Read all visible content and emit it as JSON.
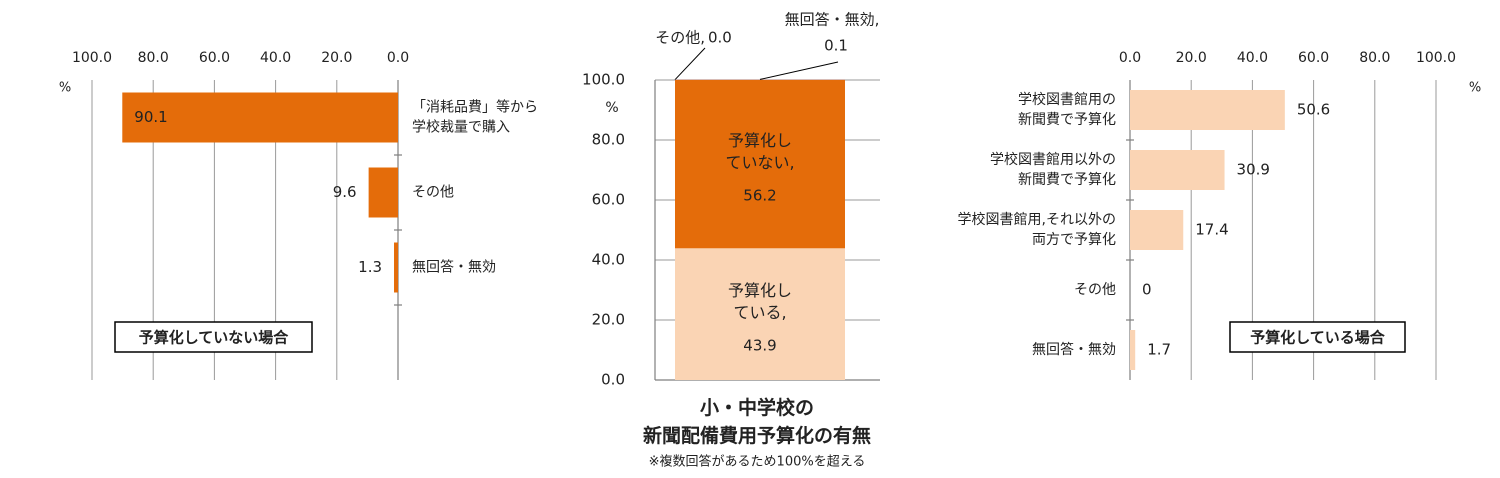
{
  "chart_data": [
    {
      "type": "hbar",
      "categories": [
        "「消耗品費」等から\n学校裁量で購入",
        "その他",
        "無回答・無効"
      ],
      "values": [
        90.1,
        9.6,
        1.3
      ],
      "color": "#E46C0A",
      "xlim": [
        100,
        0
      ],
      "xticks": [
        {
          "value": 100,
          "label": "100.0"
        },
        {
          "value": 80,
          "label": "80.0"
        },
        {
          "value": 60,
          "label": "60.0"
        },
        {
          "value": 40,
          "label": "40.0"
        },
        {
          "value": 20,
          "label": "20.0"
        },
        {
          "value": 0,
          "label": "0.0"
        }
      ],
      "grid": true,
      "axis_label": "%",
      "annotation": "予算化していない場合"
    },
    {
      "type": "stacked_bar",
      "categories": [
        null
      ],
      "series": [
        {
          "name": "予算化し\nている,",
          "color": "#FAD4B4",
          "values": [
            43.9
          ]
        },
        {
          "name": "予算化し\nていない,",
          "color": "#E46C0A",
          "values": [
            56.2
          ]
        },
        {
          "name": "その他,",
          "color": "#C0504D",
          "values": [
            0.0
          ],
          "value_labels": [
            "0.0"
          ]
        },
        {
          "name": "無回答・無効,",
          "color": "#B3A2C7",
          "values": [
            0.1
          ]
        }
      ],
      "ylim": [
        0,
        100
      ],
      "yticks": [
        {
          "value": 0,
          "label": "0.0"
        },
        {
          "value": 20,
          "label": "20.0"
        },
        {
          "value": 40,
          "label": "40.0"
        },
        {
          "value": 60,
          "label": "60.0"
        },
        {
          "value": 80,
          "label": "80.0"
        },
        {
          "value": 100,
          "label": "100.0"
        }
      ],
      "grid": true,
      "axis_label": "%",
      "title": "小・中学校の\n新聞配備費用予算化の有無",
      "note": "※複数回答があるため100%を超える"
    },
    {
      "type": "hbar",
      "categories": [
        "学校図書館用の\n新聞費で予算化",
        "学校図書館用以外の\n新聞費で予算化",
        "学校図書館用,それ以外の\n両方で予算化",
        "その他",
        "無回答・無効"
      ],
      "values": [
        50.6,
        30.9,
        17.4,
        0,
        1.7
      ],
      "color": "#FAD4B4",
      "xlim": [
        0,
        100
      ],
      "xticks": [
        {
          "value": 0,
          "label": "0.0"
        },
        {
          "value": 20,
          "label": "20.0"
        },
        {
          "value": 40,
          "label": "40.0"
        },
        {
          "value": 60,
          "label": "60.0"
        },
        {
          "value": 80,
          "label": "80.0"
        },
        {
          "value": 100,
          "label": "100.0"
        }
      ],
      "grid": true,
      "axis_label": "%",
      "annotation": "予算化している場合"
    }
  ]
}
